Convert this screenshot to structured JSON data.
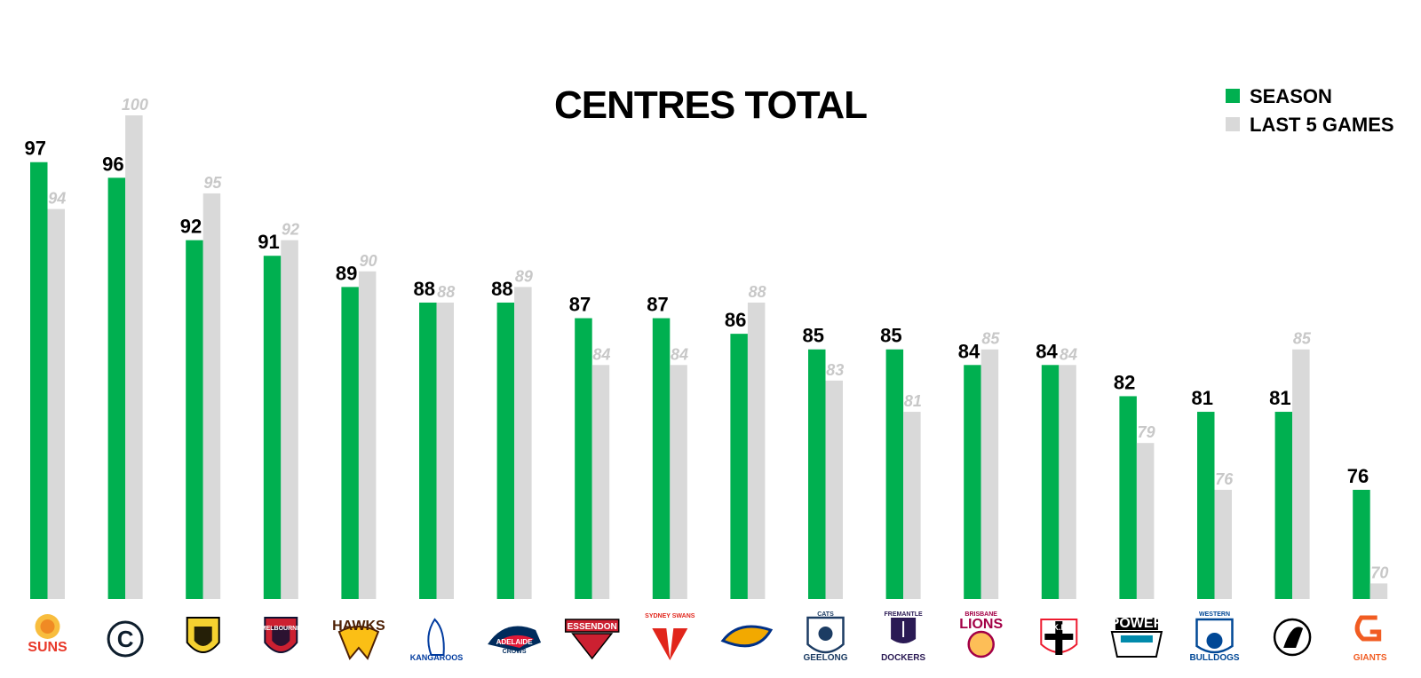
{
  "chart_data": {
    "type": "bar",
    "title": "CENTRES TOTAL",
    "categories": [
      "SUNS",
      "CARLTON",
      "TIGERS",
      "MELBOURNE",
      "HAWKS",
      "KANGAROOS",
      "ADELAIDE CROWS",
      "ESSENDON",
      "SYDNEY SWANS",
      "WEST COAST EAGLES",
      "GEELONG CATS",
      "FREMANTLE DOCKERS",
      "BRISBANE LIONS",
      "ST K.F.C.",
      "POWER",
      "WESTERN BULLDOGS",
      "COLLINGWOOD",
      "GIANTS"
    ],
    "series": [
      {
        "name": "SEASON",
        "color": "#00b050",
        "values": [
          97,
          96,
          92,
          91,
          89,
          88,
          88,
          87,
          87,
          86,
          85,
          85,
          84,
          84,
          82,
          81,
          81,
          76
        ]
      },
      {
        "name": "LAST 5 GAMES",
        "color": "#d9d9d9",
        "values": [
          94,
          100,
          95,
          92,
          90,
          88,
          89,
          84,
          84,
          88,
          83,
          81,
          85,
          84,
          79,
          76,
          85,
          70
        ]
      }
    ],
    "ylim": [
      69,
      100
    ],
    "grid": false,
    "legend": "top-right",
    "xlabel": "",
    "ylabel": ""
  },
  "logos": [
    {
      "name": "suns-logo",
      "text": "SUNS",
      "sub": "",
      "color": "#e8392a",
      "bg": "#f7b21c",
      "shape": "sun"
    },
    {
      "name": "carlton-logo",
      "text": "C",
      "sub": "",
      "color": "#0e1e2d",
      "bg": "#ffffff",
      "shape": "monogram"
    },
    {
      "name": "tigers-logo",
      "text": "",
      "sub": "",
      "color": "#000000",
      "bg": "#f5d130",
      "shape": "shield"
    },
    {
      "name": "melbourne-logo",
      "text": "MELBOURNE",
      "sub": "",
      "color": "#0f1131",
      "bg": "#cc2031",
      "shape": "shield"
    },
    {
      "name": "hawks-logo",
      "text": "HAWKS",
      "sub": "",
      "color": "#4d2004",
      "bg": "#fbbf15",
      "shape": "hawk"
    },
    {
      "name": "kangaroos-logo",
      "text": "KANGAROOS",
      "sub": "",
      "color": "#013b9f",
      "bg": "#ffffff",
      "shape": "roo"
    },
    {
      "name": "crows-logo",
      "text": "ADELAIDE",
      "sub": "CROWS",
      "color": "#002b5c",
      "bg": "#e21937",
      "shape": "crow"
    },
    {
      "name": "essendon-logo",
      "text": "ESSENDON",
      "sub": "",
      "color": "#cc2031",
      "bg": "#000000",
      "shape": "banner"
    },
    {
      "name": "swans-logo",
      "text": "SYDNEY SWANS",
      "sub": "",
      "color": "#e1251b",
      "bg": "#ffffff",
      "shape": "swan"
    },
    {
      "name": "eagles-logo",
      "text": "",
      "sub": "",
      "color": "#003087",
      "bg": "#f2a900",
      "shape": "eagle"
    },
    {
      "name": "cats-logo",
      "text": "GEELONG",
      "sub": "CATS",
      "color": "#1c3c63",
      "bg": "#ffffff",
      "shape": "cat"
    },
    {
      "name": "dockers-logo",
      "text": "DOCKERS",
      "sub": "FREMANTLE",
      "color": "#2a1a54",
      "bg": "#ffffff",
      "shape": "anchor"
    },
    {
      "name": "lions-logo",
      "text": "LIONS",
      "sub": "BRISBANE",
      "color": "#a30046",
      "bg": "#fdbe57",
      "shape": "lion"
    },
    {
      "name": "stkilda-logo",
      "text": "St K.F.C.",
      "sub": "",
      "color": "#ed1b2f",
      "bg": "#000000",
      "shape": "cross"
    },
    {
      "name": "power-logo",
      "text": "POWER",
      "sub": "",
      "color": "#008aab",
      "bg": "#000000",
      "shape": "power"
    },
    {
      "name": "bulldogs-logo",
      "text": "BULLDOGS",
      "sub": "WESTERN",
      "color": "#014896",
      "bg": "#e1251b",
      "shape": "dog"
    },
    {
      "name": "magpies-logo",
      "text": "",
      "sub": "",
      "color": "#000000",
      "bg": "#ffffff",
      "shape": "magpie"
    },
    {
      "name": "giants-logo",
      "text": "GIANTS",
      "sub": "",
      "color": "#f15c22",
      "bg": "#ffffff",
      "shape": "giants"
    }
  ]
}
